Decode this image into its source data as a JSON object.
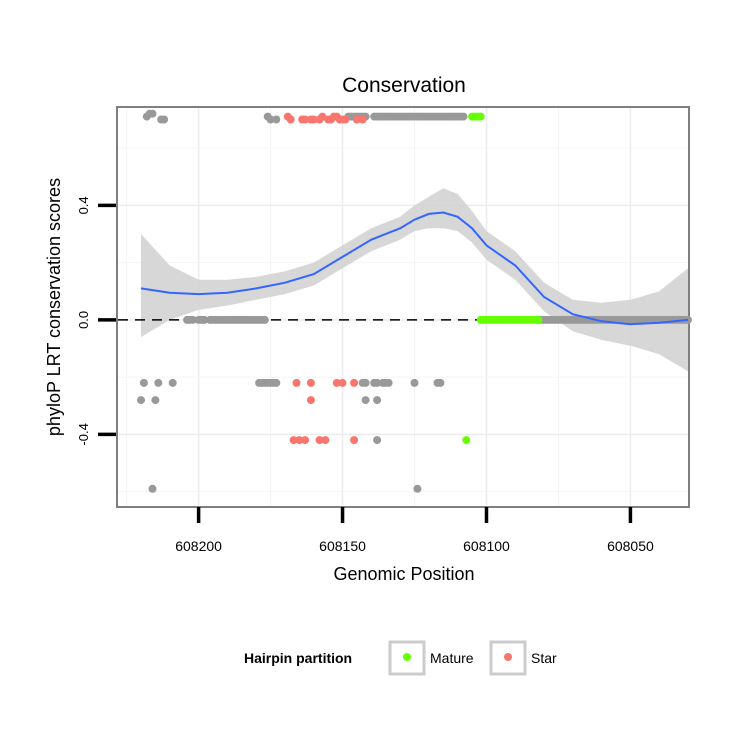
{
  "chart_data": {
    "type": "scatter",
    "title": "Conservation",
    "xlabel": "Genomic Position",
    "ylabel": "phyloP LRT conservation scores",
    "x_reversed": true,
    "xlim": [
      608030,
      608228
    ],
    "ylim": [
      -0.65,
      0.74
    ],
    "x_ticks": [
      608200,
      608150,
      608100,
      608050
    ],
    "x_tick_labels": [
      "608200",
      "608150",
      "608100",
      "608050"
    ],
    "y_ticks": [
      -0.4,
      0.0,
      0.4
    ],
    "y_tick_labels": [
      "-0.4",
      "0.0",
      "0.4"
    ],
    "reference_line": {
      "y": 0,
      "style": "dashed",
      "color": "#000000"
    },
    "legend": {
      "title": "Hairpin partition",
      "position": "bottom",
      "entries": [
        {
          "label": "Mature",
          "color": "#66ff00"
        },
        {
          "label": "Star",
          "color": "#f8766d"
        }
      ]
    },
    "colors": {
      "other": "#999999",
      "smooth_line": "#3366ff",
      "band": "#d3d3d3"
    },
    "series": [
      {
        "name": "Other",
        "color": "#999999",
        "x": [
          608218,
          608217,
          608216,
          608213,
          608212,
          608204,
          608203,
          608202,
          608200,
          608199,
          608198,
          608196,
          608195,
          608194,
          608193,
          608192,
          608191,
          608190,
          608189,
          608188,
          608187,
          608186,
          608185,
          608184,
          608183,
          608182,
          608181,
          608180,
          608179,
          608178,
          608177,
          608176,
          608175,
          608173,
          608148,
          608147,
          608146,
          608145,
          608144,
          608143,
          608142,
          608139,
          608138,
          608137,
          608136,
          608135,
          608134,
          608133,
          608132,
          608131,
          608130,
          608129,
          608128,
          608127,
          608126,
          608125,
          608124,
          608123,
          608122,
          608121,
          608120,
          608119,
          608118,
          608117,
          608116,
          608115,
          608114,
          608113,
          608112,
          608111,
          608110,
          608109,
          608108,
          608082,
          608081,
          608080,
          608079,
          608078,
          608077,
          608076,
          608075,
          608074,
          608073,
          608072,
          608071,
          608070,
          608069,
          608068,
          608067,
          608066,
          608065,
          608064,
          608063,
          608062,
          608061,
          608060,
          608059,
          608058,
          608057,
          608056,
          608055,
          608054,
          608053,
          608052,
          608051,
          608050,
          608049,
          608048,
          608047,
          608046,
          608045,
          608044,
          608043,
          608042,
          608041,
          608040,
          608039,
          608038,
          608037,
          608036,
          608035,
          608034,
          608033,
          608032,
          608031,
          608030,
          608219,
          608214,
          608209,
          608179,
          608178,
          608177,
          608176,
          608175,
          608174,
          608173,
          608143,
          608142,
          608139,
          608138,
          608136,
          608135,
          608134,
          608125,
          608117,
          608116,
          608220,
          608215,
          608142,
          608138,
          608216,
          608138,
          608124
        ],
        "y": [
          0.71,
          0.72,
          0.72,
          0.7,
          0.7,
          0,
          0,
          0,
          0,
          0,
          0,
          0,
          0,
          0,
          0,
          0,
          0,
          0,
          0,
          0,
          0,
          0,
          0,
          0,
          0,
          0,
          0,
          0,
          0,
          0,
          0,
          0.71,
          0.7,
          0.7,
          0.71,
          0.71,
          0.71,
          0.71,
          0.71,
          0.71,
          0.71,
          0.71,
          0.71,
          0.71,
          0.71,
          0.71,
          0.71,
          0.71,
          0.71,
          0.71,
          0.71,
          0.71,
          0.71,
          0.71,
          0.71,
          0.71,
          0.71,
          0.71,
          0.71,
          0.71,
          0.71,
          0.71,
          0.71,
          0.71,
          0.71,
          0.71,
          0.71,
          0.71,
          0.71,
          0.71,
          0.71,
          0.71,
          0.71,
          0,
          0,
          0,
          0,
          0,
          0,
          0,
          0,
          0,
          0,
          0,
          0,
          0,
          0,
          0,
          0,
          0,
          0,
          0,
          0,
          0,
          0,
          0,
          0,
          0,
          0,
          0,
          0,
          0,
          0,
          0,
          0,
          0,
          0,
          0,
          0,
          0,
          0,
          0,
          0,
          0,
          0,
          0,
          0,
          0,
          0,
          0,
          0,
          0,
          0,
          0,
          0,
          0,
          -0.22,
          -0.22,
          -0.22,
          -0.22,
          -0.22,
          -0.22,
          -0.22,
          -0.22,
          -0.22,
          -0.22,
          -0.22,
          -0.22,
          -0.22,
          -0.22,
          -0.22,
          -0.22,
          -0.22,
          -0.22,
          -0.22,
          -0.22,
          -0.28,
          -0.28,
          -0.28,
          -0.28,
          -0.59,
          -0.42,
          -0.59
        ]
      },
      {
        "name": "Mature",
        "color": "#66ff00",
        "x": [
          608105,
          608104,
          608103,
          608102,
          608102,
          608101,
          608100,
          608099,
          608098,
          608097,
          608096,
          608095,
          608094,
          608093,
          608092,
          608091,
          608090,
          608089,
          608088,
          608087,
          608086,
          608085,
          608084,
          608083,
          608082,
          608107
        ],
        "y": [
          0.71,
          0.71,
          0.71,
          0.71,
          0,
          0,
          0,
          0,
          0,
          0,
          0,
          0,
          0,
          0,
          0,
          0,
          0,
          0,
          0,
          0,
          0,
          0,
          0,
          0,
          0,
          -0.42
        ]
      },
      {
        "name": "Star",
        "color": "#f8766d",
        "x": [
          608169,
          608168,
          608164,
          608163,
          608161,
          608160,
          608158,
          608157,
          608155,
          608154,
          608153,
          608152,
          608151,
          608150,
          608149,
          608145,
          608143,
          608166,
          608161,
          608152,
          608150,
          608146,
          608161,
          608167,
          608165,
          608163,
          608158,
          608156,
          608146
        ],
        "y": [
          0.71,
          0.7,
          0.7,
          0.7,
          0.7,
          0.7,
          0.7,
          0.71,
          0.7,
          0.7,
          0.71,
          0.71,
          0.7,
          0.7,
          0.7,
          0.7,
          0.7,
          -0.22,
          -0.22,
          -0.22,
          -0.22,
          -0.22,
          -0.28,
          -0.42,
          -0.42,
          -0.42,
          -0.42,
          -0.42,
          -0.42
        ]
      }
    ],
    "smooth": {
      "x": [
        608220,
        608210,
        608200,
        608190,
        608180,
        608170,
        608160,
        608150,
        608140,
        608130,
        608125,
        608120,
        608115,
        608110,
        608105,
        608100,
        608090,
        608080,
        608070,
        608060,
        608050,
        608040,
        608030
      ],
      "y": [
        0.11,
        0.095,
        0.09,
        0.095,
        0.11,
        0.13,
        0.16,
        0.22,
        0.28,
        0.32,
        0.35,
        0.37,
        0.375,
        0.36,
        0.32,
        0.26,
        0.19,
        0.08,
        0.02,
        -0.005,
        -0.015,
        -0.01,
        0.0
      ],
      "lower": [
        -0.06,
        0.0,
        0.035,
        0.05,
        0.07,
        0.09,
        0.12,
        0.18,
        0.24,
        0.28,
        0.31,
        0.32,
        0.32,
        0.31,
        0.27,
        0.21,
        0.14,
        0.03,
        -0.04,
        -0.07,
        -0.09,
        -0.12,
        -0.18
      ],
      "upper": [
        0.3,
        0.19,
        0.14,
        0.14,
        0.15,
        0.17,
        0.2,
        0.26,
        0.32,
        0.36,
        0.4,
        0.43,
        0.46,
        0.44,
        0.38,
        0.31,
        0.24,
        0.13,
        0.07,
        0.06,
        0.07,
        0.1,
        0.18
      ]
    }
  }
}
